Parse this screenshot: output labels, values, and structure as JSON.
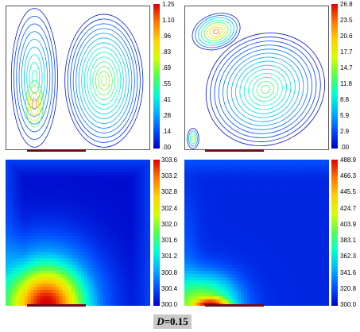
{
  "caption": {
    "label": "D=0.15"
  },
  "chart_data": [
    {
      "type": "contour",
      "panel": "top-left",
      "field": "streamlines",
      "colorbar_ticks": [
        "1.25",
        "1.10",
        ".96",
        ".83",
        ".69",
        ".55",
        ".41",
        ".28",
        ".14",
        ".00"
      ],
      "range": [
        0.0,
        1.25
      ],
      "vortices": [
        {
          "center_x": 0.2,
          "center_y": 0.32,
          "strength": 1.25
        },
        {
          "center_x": 0.68,
          "center_y": 0.38,
          "strength": 0.4
        }
      ],
      "heater": {
        "from": 0.15,
        "to": 0.55
      }
    },
    {
      "type": "contour",
      "panel": "top-right",
      "field": "streamlines",
      "colorbar_ticks": [
        "26.8",
        "23.5",
        "20.6",
        "17.7",
        "14.7",
        "11.8",
        "8.8",
        "5.9",
        "2.9",
        ".00"
      ],
      "range": [
        0.0,
        26.8
      ],
      "vortices": [
        {
          "center_x": 0.22,
          "center_y": 0.82,
          "strength": 26.8
        },
        {
          "center_x": 0.55,
          "center_y": 0.5,
          "strength": 4.0
        },
        {
          "center_x": 0.06,
          "center_y": 0.08,
          "strength": 20.0
        }
      ],
      "heater": {
        "from": 0.15,
        "to": 0.55
      }
    },
    {
      "type": "heatmap",
      "panel": "bottom-left",
      "field": "temperature",
      "colorbar_ticks": [
        "303.6",
        "303.2",
        "302.8",
        "302.4",
        "302.0",
        "301.6",
        "301.2",
        "300.8",
        "300.4",
        "300.0"
      ],
      "range": [
        300.0,
        303.6
      ],
      "heater": {
        "from": 0.15,
        "to": 0.55
      }
    },
    {
      "type": "heatmap",
      "panel": "bottom-right",
      "field": "temperature",
      "colorbar_ticks": [
        "488.9",
        "466.3",
        "445.5",
        "424.7",
        "403.9",
        "383.1",
        "362.3",
        "341.6",
        "320.8",
        "300.0"
      ],
      "range": [
        300.0,
        488.9
      ],
      "heater": {
        "from": 0.15,
        "to": 0.55
      }
    }
  ],
  "colors": {
    "colormap": [
      "#0000c8",
      "#0050ff",
      "#00b4ff",
      "#00ffd2",
      "#50ff50",
      "#d2ff00",
      "#ffd200",
      "#ff7800",
      "#dc0000"
    ],
    "heater": "#6a0c1e"
  }
}
